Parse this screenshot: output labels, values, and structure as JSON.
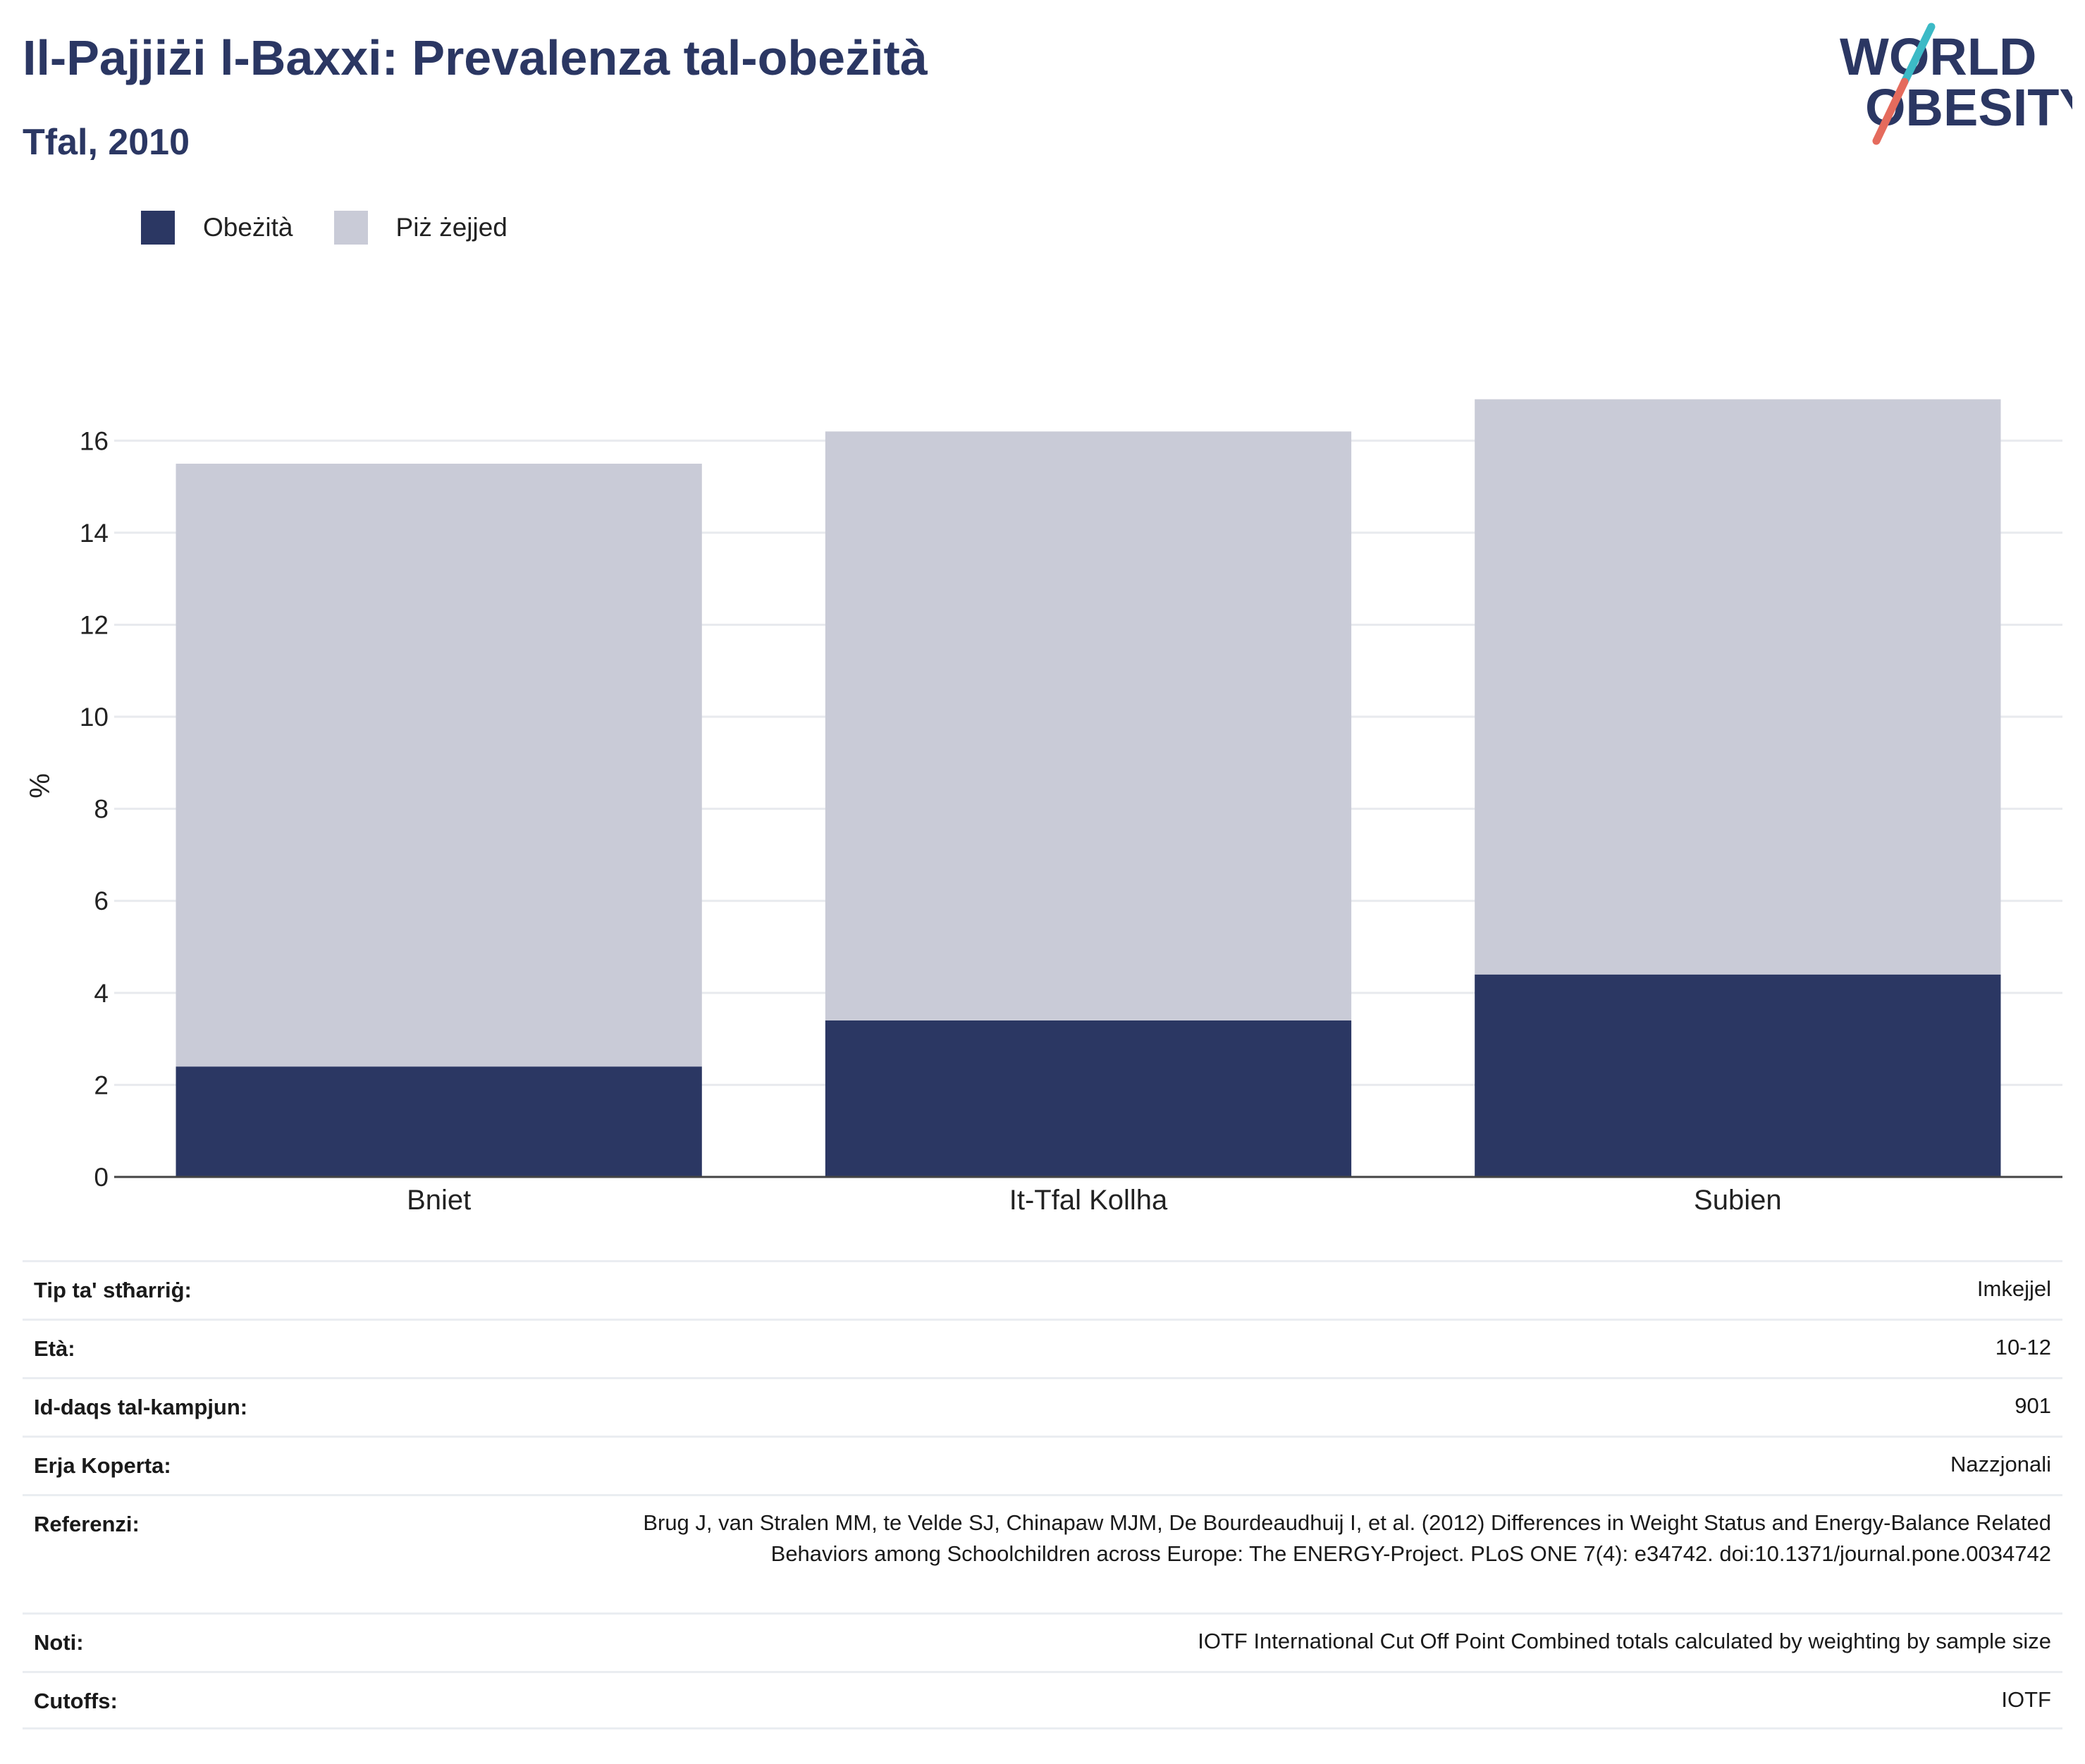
{
  "header": {
    "title": "Il-Pajjiżi l-Baxxi: Prevalenza tal-obeżità",
    "subtitle": "Tfal, 2010"
  },
  "logo": {
    "line1": "WORLD",
    "line2": "OBESITY",
    "colors": {
      "text": "#2b3763",
      "slash_top": "#3cbac6",
      "slash_bottom": "#e56b5d"
    }
  },
  "legend": {
    "items": [
      {
        "label": "Obeżità",
        "color": "#2b3763"
      },
      {
        "label": "Piż żejjed",
        "color": "#c9cbd7"
      }
    ]
  },
  "chart_data": {
    "type": "bar",
    "stacked": true,
    "categories": [
      "Bniet",
      "It-Tfal Kollha",
      "Subien"
    ],
    "series": [
      {
        "name": "Obeżità",
        "color": "#2b3763",
        "values": [
          2.4,
          3.4,
          4.4
        ]
      },
      {
        "name": "Piż żejjed",
        "color": "#c9cbd7",
        "values": [
          13.1,
          12.8,
          12.5
        ]
      }
    ],
    "ylabel": "%",
    "ylim": [
      0,
      17
    ],
    "yticks": [
      0,
      2,
      4,
      6,
      8,
      10,
      12,
      14,
      16
    ],
    "grid": true,
    "legend_position": "top-left"
  },
  "details": {
    "rows": [
      {
        "label": "Tip ta' stħarriġ:",
        "value": "Imkejjel"
      },
      {
        "label": "Età:",
        "value": "10-12"
      },
      {
        "label": "Id-daqs tal-kampjun:",
        "value": "901"
      },
      {
        "label": "Erja Koperta:",
        "value": "Nazzjonali"
      },
      {
        "label": "Referenzi:",
        "value": "Brug J, van Stralen MM, te Velde SJ, Chinapaw MJM, De Bourdeaudhuij I, et al. (2012) Differences in Weight Status and Energy-Balance Related Behaviors among Schoolchildren across Europe: The ENERGY-Project. PLoS ONE 7(4): e34742. doi:10.1371/journal.pone.0034742"
      },
      {
        "label": "Noti:",
        "value": "IOTF International Cut Off Point Combined totals calculated by weighting by sample size"
      },
      {
        "label": "Cutoffs:",
        "value": "IOTF"
      }
    ]
  }
}
